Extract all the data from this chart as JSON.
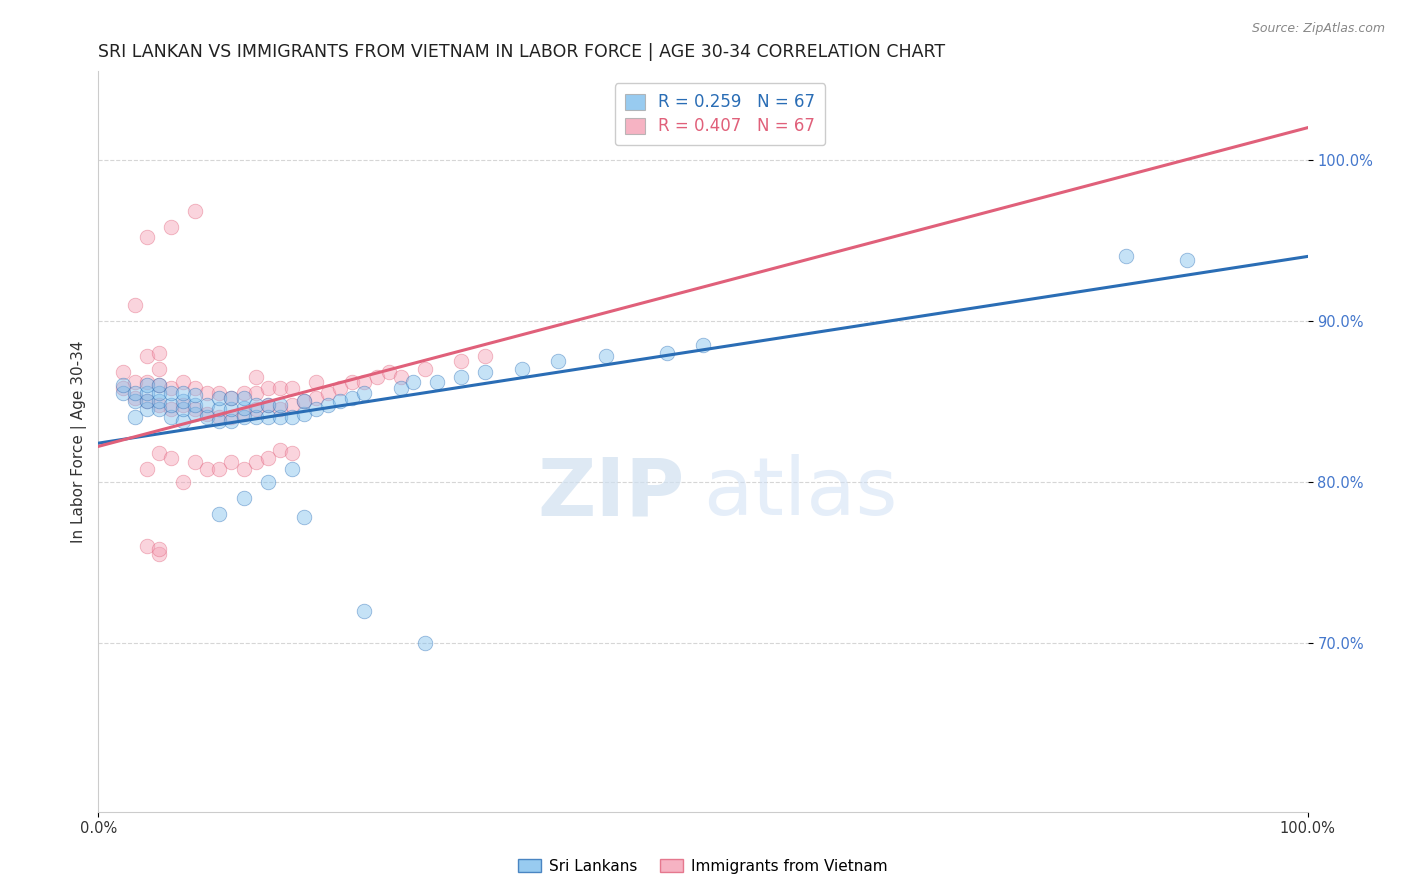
{
  "title": "SRI LANKAN VS IMMIGRANTS FROM VIETNAM IN LABOR FORCE | AGE 30-34 CORRELATION CHART",
  "source": "Source: ZipAtlas.com",
  "xlabel": "",
  "ylabel": "In Labor Force | Age 30-34",
  "legend_labels": [
    "Sri Lankans",
    "Immigrants from Vietnam"
  ],
  "R_blue": 0.259,
  "N_blue": 67,
  "R_pink": 0.407,
  "N_pink": 67,
  "x_min": 0.0,
  "x_max": 1.0,
  "y_min": 0.595,
  "y_max": 1.055,
  "y_ticks": [
    0.7,
    0.8,
    0.9,
    1.0
  ],
  "y_tick_labels": [
    "70.0%",
    "80.0%",
    "90.0%",
    "100.0%"
  ],
  "x_ticks": [
    0.0,
    1.0
  ],
  "x_tick_labels": [
    "0.0%",
    "100.0%"
  ],
  "color_blue": "#7fbfed",
  "color_pink": "#f4a0b5",
  "color_blue_line": "#2a6db5",
  "color_pink_line": "#e0607a",
  "blue_scatter_x": [
    0.02,
    0.02,
    0.03,
    0.03,
    0.03,
    0.04,
    0.04,
    0.04,
    0.04,
    0.05,
    0.05,
    0.05,
    0.05,
    0.06,
    0.06,
    0.06,
    0.07,
    0.07,
    0.07,
    0.07,
    0.08,
    0.08,
    0.08,
    0.09,
    0.09,
    0.1,
    0.1,
    0.1,
    0.11,
    0.11,
    0.11,
    0.12,
    0.12,
    0.12,
    0.13,
    0.13,
    0.14,
    0.14,
    0.15,
    0.15,
    0.16,
    0.17,
    0.17,
    0.18,
    0.19,
    0.2,
    0.21,
    0.22,
    0.25,
    0.26,
    0.28,
    0.3,
    0.32,
    0.35,
    0.38,
    0.42,
    0.47,
    0.5,
    0.14,
    0.16,
    0.1,
    0.12,
    0.17,
    0.22,
    0.27,
    0.85,
    0.9
  ],
  "blue_scatter_y": [
    0.855,
    0.86,
    0.84,
    0.85,
    0.855,
    0.845,
    0.85,
    0.855,
    0.86,
    0.845,
    0.85,
    0.855,
    0.86,
    0.84,
    0.848,
    0.855,
    0.838,
    0.845,
    0.85,
    0.855,
    0.842,
    0.848,
    0.854,
    0.84,
    0.848,
    0.838,
    0.845,
    0.852,
    0.838,
    0.845,
    0.852,
    0.84,
    0.846,
    0.852,
    0.84,
    0.848,
    0.84,
    0.848,
    0.84,
    0.848,
    0.84,
    0.842,
    0.85,
    0.845,
    0.848,
    0.85,
    0.852,
    0.855,
    0.858,
    0.862,
    0.862,
    0.865,
    0.868,
    0.87,
    0.875,
    0.878,
    0.88,
    0.885,
    0.8,
    0.808,
    0.78,
    0.79,
    0.778,
    0.72,
    0.7,
    0.94,
    0.938
  ],
  "pink_scatter_x": [
    0.02,
    0.02,
    0.03,
    0.03,
    0.04,
    0.04,
    0.04,
    0.05,
    0.05,
    0.05,
    0.05,
    0.06,
    0.06,
    0.07,
    0.07,
    0.08,
    0.08,
    0.09,
    0.09,
    0.1,
    0.1,
    0.11,
    0.11,
    0.12,
    0.12,
    0.13,
    0.13,
    0.13,
    0.14,
    0.14,
    0.15,
    0.15,
    0.16,
    0.16,
    0.17,
    0.18,
    0.18,
    0.19,
    0.2,
    0.21,
    0.22,
    0.23,
    0.24,
    0.25,
    0.27,
    0.3,
    0.32,
    0.04,
    0.05,
    0.06,
    0.07,
    0.08,
    0.09,
    0.1,
    0.11,
    0.12,
    0.13,
    0.14,
    0.15,
    0.16,
    0.06,
    0.08,
    0.03,
    0.04,
    0.04,
    0.05,
    0.05
  ],
  "pink_scatter_y": [
    0.858,
    0.868,
    0.852,
    0.862,
    0.85,
    0.862,
    0.878,
    0.848,
    0.86,
    0.87,
    0.88,
    0.845,
    0.858,
    0.848,
    0.862,
    0.845,
    0.858,
    0.842,
    0.855,
    0.84,
    0.855,
    0.84,
    0.852,
    0.842,
    0.855,
    0.845,
    0.855,
    0.865,
    0.848,
    0.858,
    0.845,
    0.858,
    0.848,
    0.858,
    0.85,
    0.852,
    0.862,
    0.855,
    0.858,
    0.862,
    0.862,
    0.865,
    0.868,
    0.865,
    0.87,
    0.875,
    0.878,
    0.808,
    0.818,
    0.815,
    0.8,
    0.812,
    0.808,
    0.808,
    0.812,
    0.808,
    0.812,
    0.815,
    0.82,
    0.818,
    0.958,
    0.968,
    0.91,
    0.76,
    0.952,
    0.755,
    0.758
  ],
  "blue_line_x": [
    0.0,
    1.0
  ],
  "blue_line_y_start": 0.824,
  "blue_line_y_end": 0.94,
  "pink_line_x": [
    0.0,
    1.0
  ],
  "pink_line_y_start": 0.822,
  "pink_line_y_end": 1.02,
  "watermark_zip": "ZIP",
  "watermark_atlas": "atlas",
  "title_fontsize": 12.5,
  "axis_label_fontsize": 11,
  "tick_fontsize": 10.5,
  "legend_fontsize": 12,
  "dot_size": 110,
  "dot_alpha": 0.45,
  "line_width": 2.2
}
